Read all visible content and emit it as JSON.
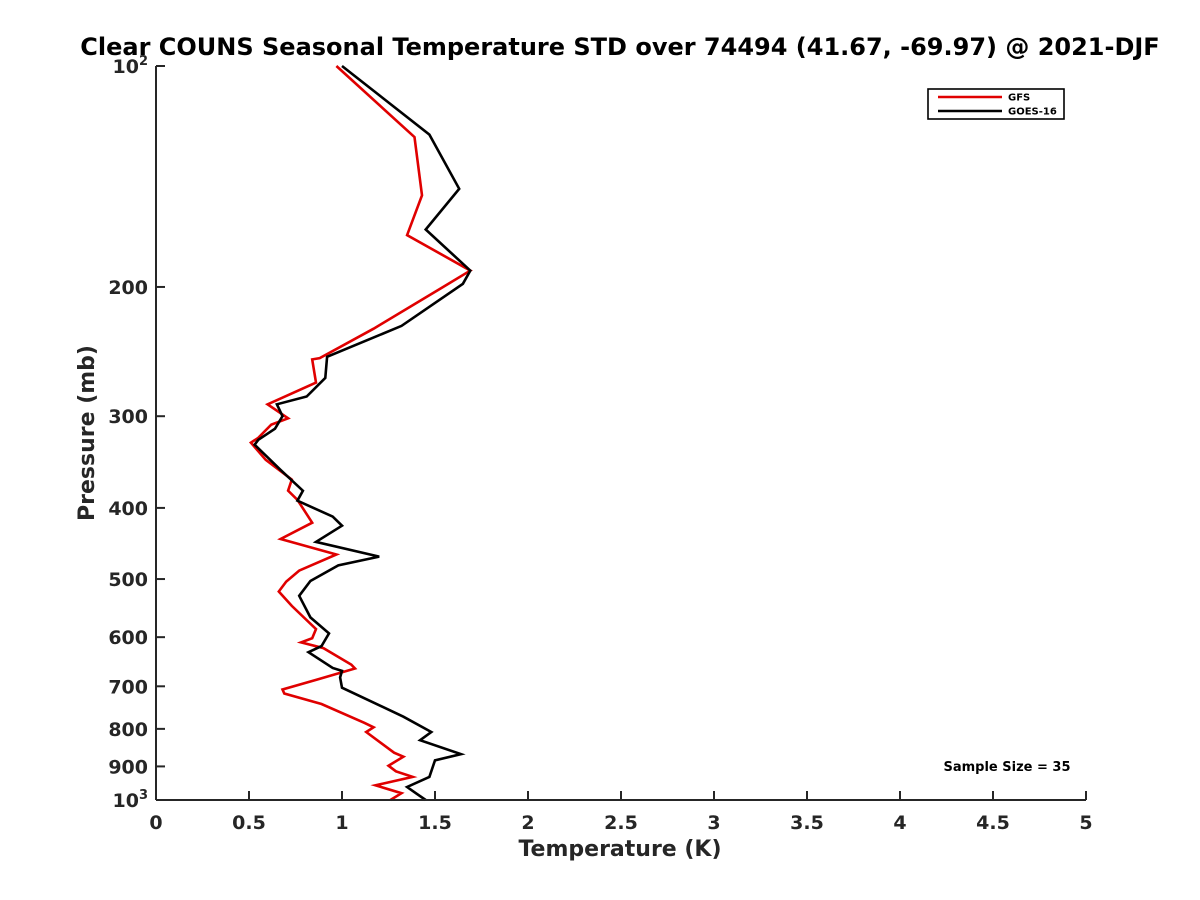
{
  "chart_data": {
    "type": "line",
    "title": "Clear COUNS Seasonal Temperature STD over 74494 (41.67, -69.97) @ 2021-DJF",
    "xlabel": "Temperature (K)",
    "ylabel": "Pressure (mb)",
    "xlim": [
      0,
      5
    ],
    "ylim": [
      100,
      1000
    ],
    "y_scale": "log",
    "y_reversed": true,
    "x_ticks": [
      {
        "value": 0,
        "label": "0"
      },
      {
        "value": 0.5,
        "label": "0.5"
      },
      {
        "value": 1,
        "label": "1"
      },
      {
        "value": 1.5,
        "label": "1.5"
      },
      {
        "value": 2,
        "label": "2"
      },
      {
        "value": 2.5,
        "label": "2.5"
      },
      {
        "value": 3,
        "label": "3"
      },
      {
        "value": 3.5,
        "label": "3.5"
      },
      {
        "value": 4,
        "label": "4"
      },
      {
        "value": 4.5,
        "label": "4.5"
      },
      {
        "value": 5,
        "label": "5"
      }
    ],
    "y_ticks": [
      {
        "value": 100,
        "label_base": "10",
        "label_exp": "2"
      },
      {
        "value": 200,
        "label_base": "200",
        "label_exp": ""
      },
      {
        "value": 300,
        "label_base": "300",
        "label_exp": ""
      },
      {
        "value": 400,
        "label_base": "400",
        "label_exp": ""
      },
      {
        "value": 500,
        "label_base": "500",
        "label_exp": ""
      },
      {
        "value": 600,
        "label_base": "600",
        "label_exp": ""
      },
      {
        "value": 700,
        "label_base": "700",
        "label_exp": ""
      },
      {
        "value": 800,
        "label_base": "800",
        "label_exp": ""
      },
      {
        "value": 900,
        "label_base": "900",
        "label_exp": ""
      },
      {
        "value": 1000,
        "label_base": "10",
        "label_exp": "3"
      }
    ],
    "legend_position": "top-right",
    "annotation": "Sample Size = 35",
    "grid": false,
    "series": [
      {
        "name": "GFS",
        "color": "#e00000",
        "points": [
          [
            0.97,
            100
          ],
          [
            1.39,
            125
          ],
          [
            1.43,
            150
          ],
          [
            1.35,
            170
          ],
          [
            1.69,
            190
          ],
          [
            1.53,
            201
          ],
          [
            1.17,
            228
          ],
          [
            0.88,
            250
          ],
          [
            0.84,
            251
          ],
          [
            0.86,
            270
          ],
          [
            0.6,
            289
          ],
          [
            0.71,
            302
          ],
          [
            0.62,
            308
          ],
          [
            0.55,
            321
          ],
          [
            0.51,
            326
          ],
          [
            0.59,
            344
          ],
          [
            0.73,
            366
          ],
          [
            0.71,
            379
          ],
          [
            0.76,
            390
          ],
          [
            0.84,
            419
          ],
          [
            0.67,
            441
          ],
          [
            0.97,
            463
          ],
          [
            0.77,
            487
          ],
          [
            0.7,
            504
          ],
          [
            0.66,
            520
          ],
          [
            0.73,
            544
          ],
          [
            0.86,
            585
          ],
          [
            0.84,
            602
          ],
          [
            0.78,
            610
          ],
          [
            0.9,
            621
          ],
          [
            1.05,
            654
          ],
          [
            1.07,
            662
          ],
          [
            0.87,
            685
          ],
          [
            0.68,
            707
          ],
          [
            0.69,
            716
          ],
          [
            0.89,
            740
          ],
          [
            1.12,
            785
          ],
          [
            1.17,
            796
          ],
          [
            1.13,
            808
          ],
          [
            1.28,
            862
          ],
          [
            1.33,
            873
          ],
          [
            1.25,
            898
          ],
          [
            1.29,
            914
          ],
          [
            1.38,
            930
          ],
          [
            1.18,
            955
          ],
          [
            1.32,
            979
          ],
          [
            1.26,
            1000
          ]
        ]
      },
      {
        "name": "GOES-16",
        "color": "#000000",
        "points": [
          [
            1.0,
            100
          ],
          [
            1.47,
            124
          ],
          [
            1.63,
            147
          ],
          [
            1.45,
            167
          ],
          [
            1.69,
            190
          ],
          [
            1.65,
            198
          ],
          [
            1.32,
            226
          ],
          [
            0.92,
            249
          ],
          [
            0.91,
            266
          ],
          [
            0.81,
            282
          ],
          [
            0.65,
            289
          ],
          [
            0.68,
            300
          ],
          [
            0.64,
            312
          ],
          [
            0.55,
            323
          ],
          [
            0.53,
            328
          ],
          [
            0.67,
            355
          ],
          [
            0.79,
            379
          ],
          [
            0.76,
            391
          ],
          [
            0.95,
            411
          ],
          [
            1.0,
            423
          ],
          [
            0.86,
            445
          ],
          [
            1.2,
            466
          ],
          [
            0.98,
            479
          ],
          [
            0.83,
            503
          ],
          [
            0.77,
            527
          ],
          [
            0.83,
            564
          ],
          [
            0.93,
            593
          ],
          [
            0.89,
            617
          ],
          [
            0.82,
            629
          ],
          [
            0.95,
            661
          ],
          [
            1.0,
            667
          ],
          [
            0.99,
            681
          ],
          [
            1.0,
            703
          ],
          [
            1.33,
            770
          ],
          [
            1.48,
            808
          ],
          [
            1.42,
            829
          ],
          [
            1.64,
            866
          ],
          [
            1.5,
            883
          ],
          [
            1.47,
            930
          ],
          [
            1.35,
            960
          ],
          [
            1.4,
            980
          ],
          [
            1.45,
            1000
          ]
        ]
      }
    ]
  }
}
